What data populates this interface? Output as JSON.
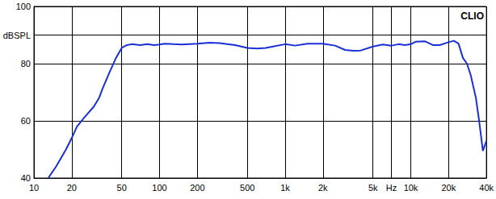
{
  "chart_data": {
    "type": "line",
    "title": "CLIO",
    "x": [
      13,
      15,
      18,
      20,
      22,
      25,
      30,
      33,
      35,
      40,
      45,
      50,
      55,
      60,
      70,
      80,
      90,
      100,
      110,
      130,
      150,
      200,
      250,
      300,
      400,
      500,
      600,
      700,
      800,
      1000,
      1200,
      1500,
      2000,
      2500,
      3000,
      3500,
      4000,
      5000,
      6000,
      7000,
      8000,
      9000,
      10000,
      11000,
      13000,
      15000,
      17000,
      20000,
      22000,
      24000,
      26000,
      28000,
      30000,
      33000,
      35000,
      37500,
      40000
    ],
    "values": [
      40,
      44,
      50,
      54,
      58,
      61,
      65,
      68,
      71,
      77,
      82,
      85.5,
      86.5,
      86.8,
      86.5,
      86.8,
      86.5,
      86.7,
      87,
      86.8,
      86.7,
      87,
      87.3,
      87.2,
      86.5,
      85.5,
      85.3,
      85.5,
      86,
      86.8,
      86.3,
      87,
      87,
      86.3,
      84.8,
      84.5,
      84.6,
      86,
      86.7,
      86.3,
      86.8,
      86.5,
      86.8,
      87.7,
      87.8,
      86.5,
      86.5,
      87.5,
      88,
      87,
      82,
      80,
      76,
      68,
      60,
      49.5,
      53
    ],
    "color": "#1a2fd6",
    "xlim": [
      10,
      40000
    ],
    "xticks": [
      10,
      20,
      50,
      100,
      200,
      500,
      {
        "value": 1000,
        "label": "1k"
      },
      {
        "value": 2000,
        "label": "2k"
      },
      {
        "value": 5000,
        "label": "5k"
      },
      {
        "value": 7000,
        "label": "Hz"
      },
      {
        "value": 10000,
        "label": "10k"
      },
      {
        "value": 20000,
        "label": "20k"
      },
      {
        "value": 40000,
        "label": "40k"
      }
    ],
    "ylim": [
      40,
      100
    ],
    "yticks": [
      40,
      60,
      80,
      {
        "value": 90,
        "label": "dBSPL"
      },
      100
    ],
    "log": "x",
    "grid": true
  }
}
